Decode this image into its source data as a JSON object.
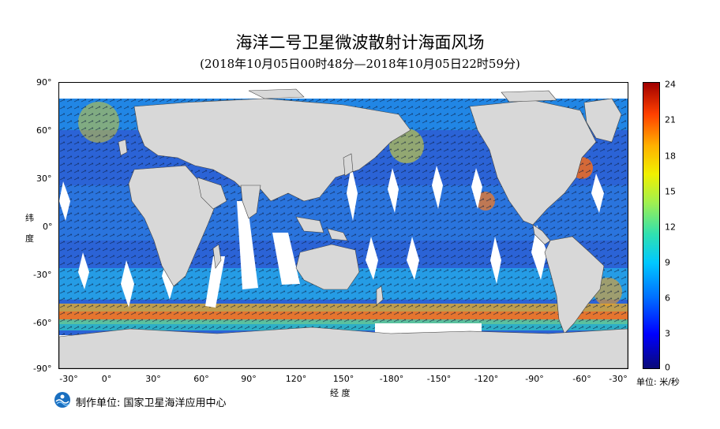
{
  "title": "海洋二号卫星微波散射计海面风场",
  "subtitle": "(2018年10月05日00时48分—2018年10月05日22时59分)",
  "y_axis_title_chars": [
    "纬",
    "度"
  ],
  "x_axis_title": "经 度",
  "y_ticks": [
    "90°",
    "60°",
    "30°",
    "0°",
    "-30°",
    "-60°",
    "-90°"
  ],
  "x_ticks": [
    "-30°",
    "0°",
    "30°",
    "60°",
    "90°",
    "120°",
    "150°",
    "-180°",
    "-150°",
    "-120°",
    "-90°",
    "-60°",
    "-30°"
  ],
  "colorbar": {
    "ticks": [
      "24",
      "21",
      "18",
      "15",
      "12",
      "9",
      "6",
      "3",
      "0"
    ],
    "min": 0,
    "max": 24,
    "unit": "单位: 米/秒",
    "colors": [
      "#0a0a78",
      "#0000ff",
      "#0070ff",
      "#00c8ff",
      "#30e0b0",
      "#a0f050",
      "#f0f000",
      "#ffb000",
      "#ff4000",
      "#a00000"
    ]
  },
  "footer": "制作单位: 国家卫星海洋应用中心",
  "map": {
    "land_color": "#d8d8d8",
    "ocean_color": "#2d6fd8",
    "gap_color": "#ffffff"
  },
  "logo_icon": "nsoas-logo-icon"
}
